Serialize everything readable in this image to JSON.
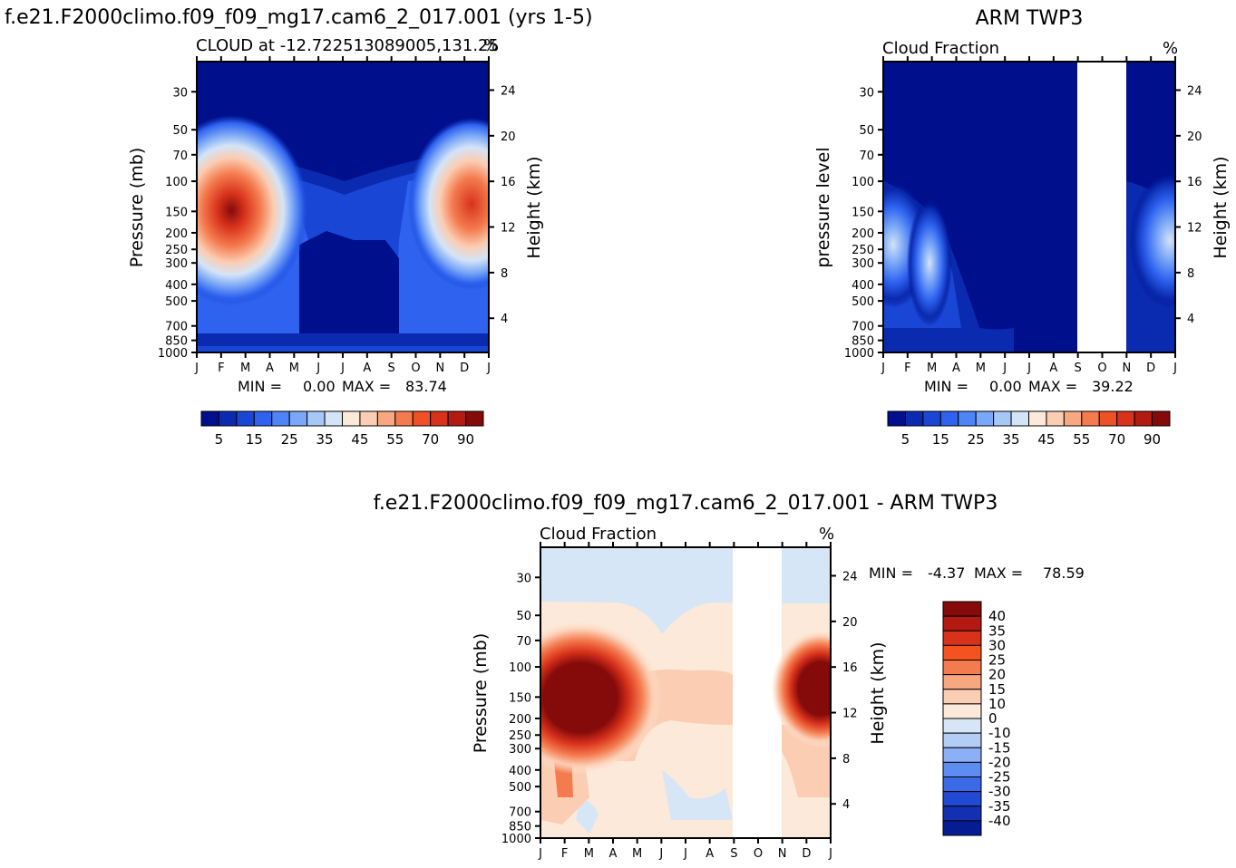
{
  "chart_data": [
    {
      "type": "heatmap",
      "title": "f.e21.F2000climo.f09_f09_mg17.cam6_2_017.001 (yrs 1-5)",
      "subtitle": "CLOUD at -12.722513089005,131.25",
      "units": "%",
      "ylabel": "Pressure (mb)",
      "y2label": "Height (km)",
      "months": [
        "J",
        "F",
        "M",
        "A",
        "M",
        "J",
        "J",
        "A",
        "S",
        "O",
        "N",
        "D",
        "J"
      ],
      "pressure_ticks": [
        "30",
        "50",
        "70",
        "100",
        "150",
        "200",
        "250",
        "300",
        "400",
        "500",
        "700",
        "850",
        "1000"
      ],
      "pressure_values": [
        30,
        50,
        70,
        100,
        150,
        200,
        250,
        300,
        400,
        500,
        700,
        850,
        1000
      ],
      "height_ticks": [
        "24",
        "20",
        "16",
        "12",
        "8",
        "4"
      ],
      "height_values": [
        24,
        20,
        16,
        12,
        8,
        4
      ],
      "min_label": "MIN =",
      "min_value": "0.00",
      "max_label": "MAX =",
      "max_value": "83.74",
      "colorbar_labels": [
        "5",
        "15",
        "25",
        "35",
        "45",
        "55",
        "70",
        "90"
      ],
      "colorbar_colors": [
        "#000f8c",
        "#0a2bb0",
        "#1a46d6",
        "#2e62ef",
        "#4e84f6",
        "#7aa7f7",
        "#a7c7f7",
        "#d3e4f7",
        "#fde9d9",
        "#fbcdb2",
        "#f8a880",
        "#f47b4e",
        "#ee5126",
        "#d8321b",
        "#b21a12",
        "#850a0a"
      ]
    },
    {
      "type": "heatmap",
      "title": "ARM TWP3",
      "subtitle": "Cloud Fraction",
      "units": "%",
      "ylabel": "pressure level",
      "y2label": "Height (km)",
      "months": [
        "J",
        "F",
        "M",
        "A",
        "M",
        "J",
        "J",
        "A",
        "S",
        "O",
        "N",
        "D",
        "J"
      ],
      "pressure_ticks": [
        "30",
        "50",
        "70",
        "100",
        "150",
        "200",
        "250",
        "300",
        "400",
        "500",
        "700",
        "850",
        "1000"
      ],
      "pressure_values": [
        30,
        50,
        70,
        100,
        150,
        200,
        250,
        300,
        400,
        500,
        700,
        850,
        1000
      ],
      "height_ticks": [
        "24",
        "20",
        "16",
        "12",
        "8",
        "4"
      ],
      "height_values": [
        24,
        20,
        16,
        12,
        8,
        4
      ],
      "missing_months": [
        "S-N"
      ],
      "min_label": "MIN =",
      "min_value": "0.00",
      "max_label": "MAX =",
      "max_value": "39.22",
      "colorbar_labels": [
        "5",
        "15",
        "25",
        "35",
        "45",
        "55",
        "70",
        "90"
      ]
    },
    {
      "type": "heatmap",
      "title": "f.e21.F2000climo.f09_f09_mg17.cam6_2_017.001 - ARM TWP3",
      "subtitle": "Cloud Fraction",
      "units": "%",
      "ylabel": "Pressure (mb)",
      "y2label": "Height (km)",
      "months": [
        "J",
        "F",
        "M",
        "A",
        "M",
        "J",
        "J",
        "A",
        "S",
        "O",
        "N",
        "D",
        "J"
      ],
      "pressure_ticks": [
        "30",
        "50",
        "70",
        "100",
        "150",
        "200",
        "250",
        "300",
        "400",
        "500",
        "700",
        "850",
        "1000"
      ],
      "pressure_values": [
        30,
        50,
        70,
        100,
        150,
        200,
        250,
        300,
        400,
        500,
        700,
        850,
        1000
      ],
      "height_ticks": [
        "24",
        "20",
        "16",
        "12",
        "8",
        "4"
      ],
      "height_values": [
        24,
        20,
        16,
        12,
        8,
        4
      ],
      "missing_months": [
        "S-N"
      ],
      "min_label": "MIN =",
      "min_value": "-4.37",
      "max_label": "MAX =",
      "max_value": "78.59",
      "colorbar_labels": [
        "40",
        "35",
        "30",
        "25",
        "20",
        "15",
        "10",
        "0",
        "-10",
        "-15",
        "-20",
        "-25",
        "-30",
        "-35",
        "-40"
      ],
      "colorbar_colors": [
        "#850a0a",
        "#b21a12",
        "#d8321b",
        "#f4531f",
        "#f47b4e",
        "#f8a880",
        "#fbcdb2",
        "#fde9d9",
        "#d6e6f7",
        "#b3cdf6",
        "#8cb0f5",
        "#5e8df2",
        "#3a6ae8",
        "#2149d2",
        "#1330b3",
        "#061c94"
      ]
    }
  ]
}
